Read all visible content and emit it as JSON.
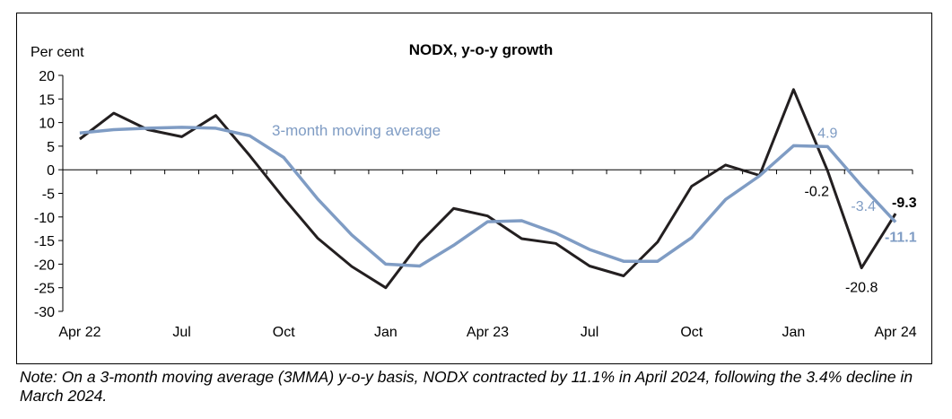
{
  "chart_data": {
    "type": "line",
    "title": "NODX, y-o-y growth",
    "ylabel": "Per cent",
    "xlabel": "",
    "ylim": [
      -30,
      20
    ],
    "yticks": [
      20,
      15,
      10,
      5,
      0,
      -5,
      -10,
      -15,
      -20,
      -25,
      -30
    ],
    "x": [
      "Apr 22",
      "May 22",
      "Jun 22",
      "Jul 22",
      "Aug 22",
      "Sep 22",
      "Oct 22",
      "Nov 22",
      "Dec 22",
      "Jan 23",
      "Feb 23",
      "Mar 23",
      "Apr 23",
      "May 23",
      "Jun 23",
      "Jul 23",
      "Aug 23",
      "Sep 23",
      "Oct 23",
      "Nov 23",
      "Dec 23",
      "Jan 24",
      "Feb 24",
      "Mar 24",
      "Apr 24"
    ],
    "xtick_labels": [
      {
        "index": 0,
        "label": "Apr 22"
      },
      {
        "index": 3,
        "label": "Jul"
      },
      {
        "index": 6,
        "label": "Oct"
      },
      {
        "index": 9,
        "label": "Jan"
      },
      {
        "index": 12,
        "label": "Apr 23"
      },
      {
        "index": 15,
        "label": "Jul"
      },
      {
        "index": 18,
        "label": "Oct"
      },
      {
        "index": 21,
        "label": "Jan"
      },
      {
        "index": 24,
        "label": "Apr 24"
      }
    ],
    "series": [
      {
        "key": "nodx",
        "color": "#231f20",
        "values": [
          6.5,
          12.0,
          8.5,
          7.0,
          11.5,
          3.0,
          -6.0,
          -14.5,
          -20.5,
          -25.0,
          -15.5,
          -8.2,
          -9.8,
          -14.6,
          -15.6,
          -20.4,
          -22.5,
          -15.3,
          -3.5,
          1.0,
          -1.2,
          17.0,
          -0.2,
          -20.8,
          -9.3
        ]
      },
      {
        "key": "mma3",
        "name": "3-month moving average",
        "color": "#7f9cc4",
        "values": [
          7.8,
          8.5,
          8.8,
          9.0,
          8.8,
          7.2,
          2.6,
          -6.2,
          -13.8,
          -20.0,
          -20.4,
          -16.0,
          -11.0,
          -10.8,
          -13.4,
          -16.9,
          -19.4,
          -19.4,
          -14.4,
          -6.3,
          -1.3,
          5.1,
          4.9,
          -3.4,
          -11.1
        ]
      }
    ],
    "annotations": [
      {
        "text": "4.9",
        "index": 22,
        "series": "mma3"
      },
      {
        "text": "-0.2",
        "index": 22,
        "series": "nodx"
      },
      {
        "text": "-3.4",
        "index": 23,
        "series": "mma3"
      },
      {
        "text": "-20.8",
        "index": 23,
        "series": "nodx"
      },
      {
        "text": "-9.3",
        "index": 24,
        "series": "nodx"
      },
      {
        "text": "-11.1",
        "index": 24,
        "series": "mma3"
      }
    ],
    "legend_label": "3-month moving average",
    "grid": false
  },
  "note": "Note: On a 3-month moving average (3MMA) y-o-y basis, NODX contracted by 11.1% in April 2024, following the 3.4% decline in March 2024."
}
